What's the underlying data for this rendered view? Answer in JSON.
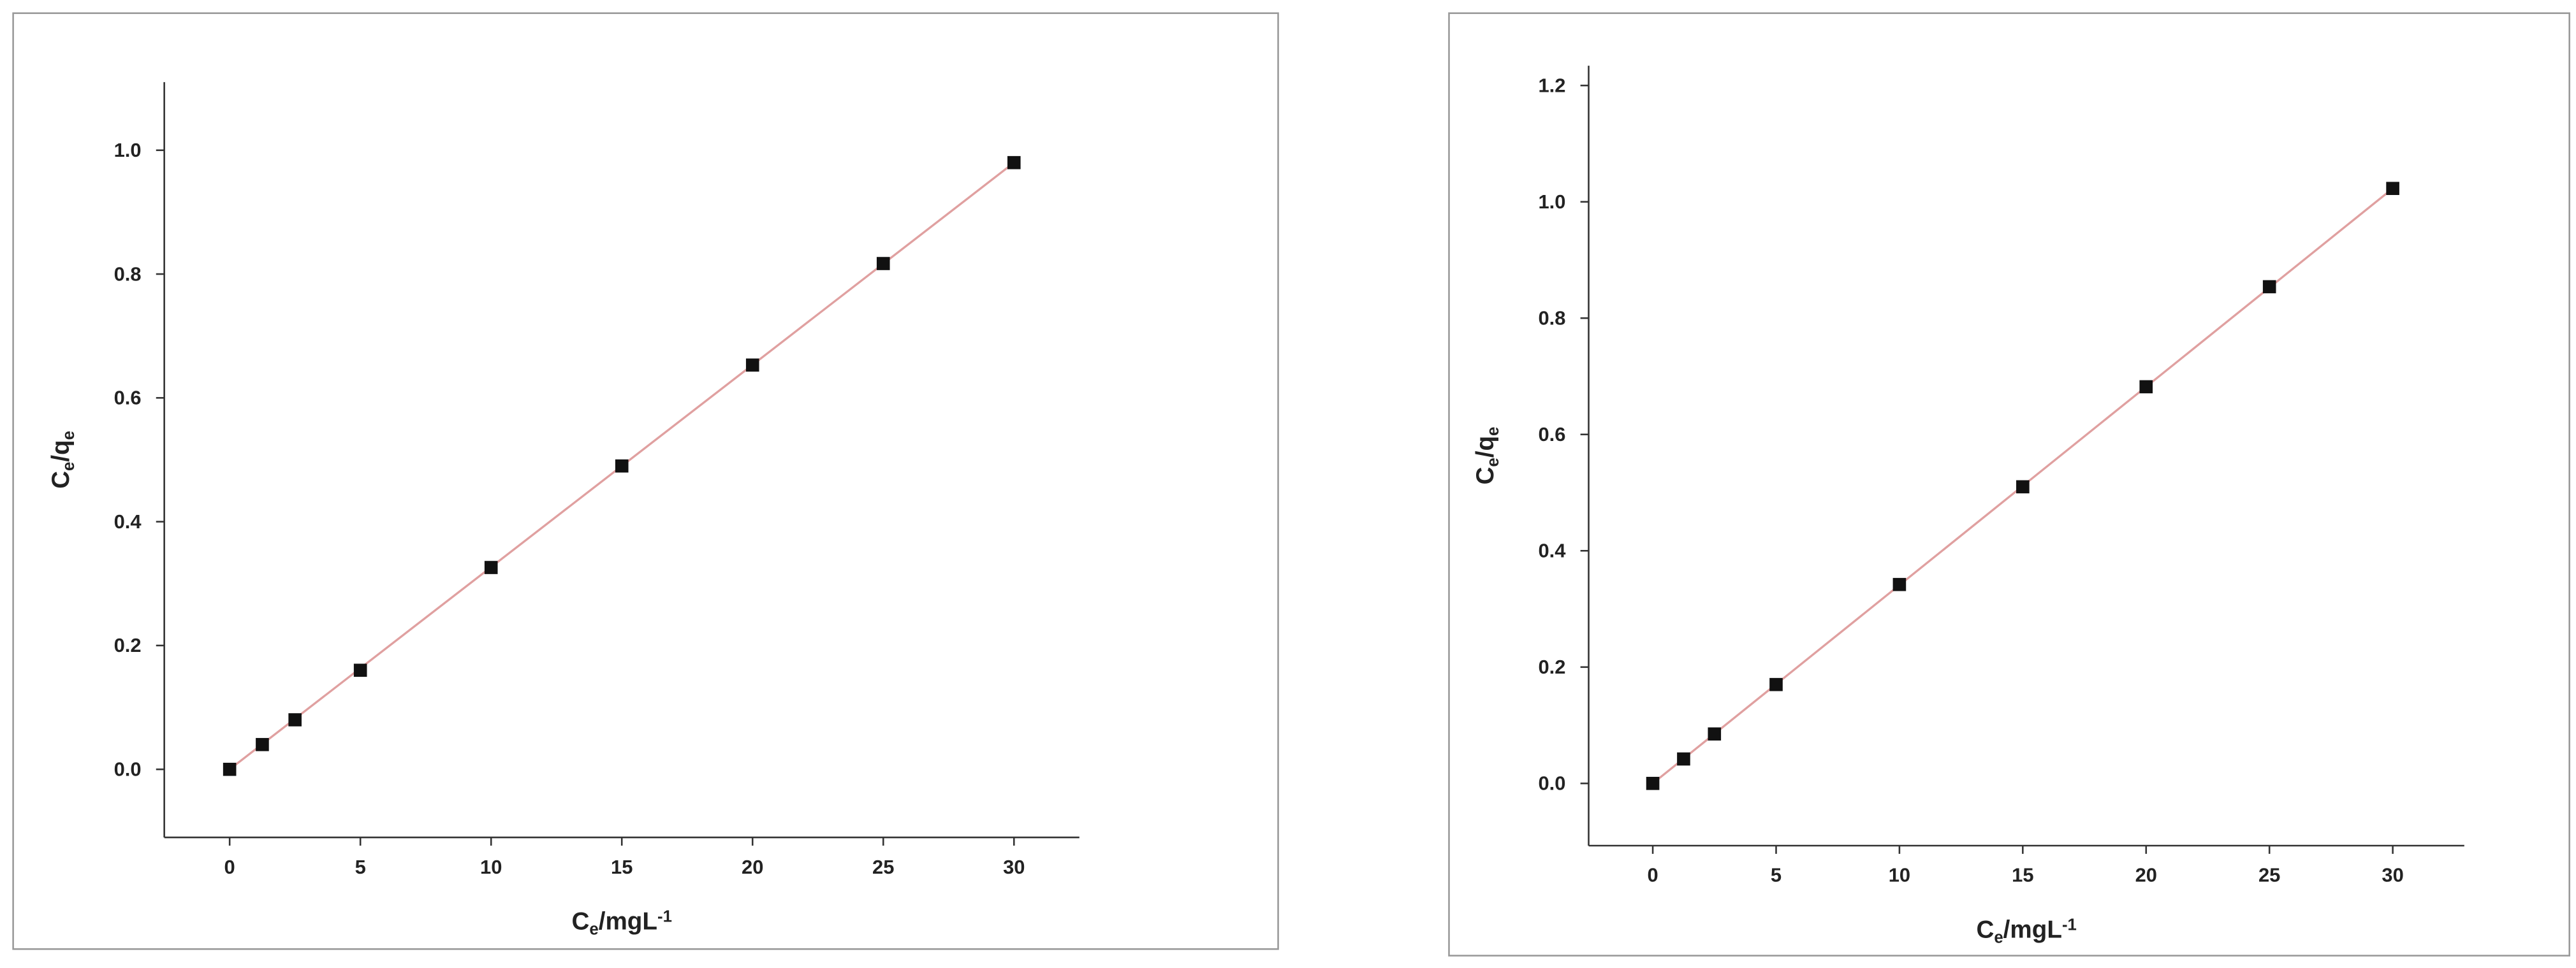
{
  "chart_data": [
    {
      "type": "scatter",
      "x": [
        0,
        1.25,
        2.5,
        5,
        10,
        15,
        20,
        25,
        30
      ],
      "series": [
        {
          "color": "#111111",
          "values": [
            0,
            0.04,
            0.08,
            0.16,
            0.326,
            0.49,
            0.653,
            0.817,
            0.98
          ]
        }
      ],
      "fit_line": {
        "color": "#e0a0a0",
        "x": [
          0,
          30
        ],
        "values": [
          0,
          0.98
        ]
      },
      "xlim": [
        -2.5,
        32.5
      ],
      "ylim": [
        -0.11,
        1.11
      ],
      "xticks": [
        0,
        5,
        10,
        15,
        20,
        25,
        30
      ],
      "yticks": [
        {
          "value": 0,
          "label": "0.0"
        },
        {
          "value": 0.2,
          "label": "0.2"
        },
        {
          "value": 0.4,
          "label": "0.4"
        },
        {
          "value": 0.6,
          "label": "0.6"
        },
        {
          "value": 0.8,
          "label": "0.8"
        },
        {
          "value": 1.0,
          "label": "1.0"
        }
      ],
      "xlabel": [
        "C",
        "e",
        "/mgL",
        "-1"
      ],
      "xlabel_styles": [
        "normal",
        "sub",
        "normal",
        "sup"
      ],
      "ylabel": [
        "C",
        "e",
        "/q",
        "e"
      ],
      "ylabel_styles": [
        "normal",
        "sub",
        "normal",
        "sub"
      ]
    },
    {
      "type": "scatter",
      "x": [
        0,
        1.25,
        2.5,
        5,
        10,
        15,
        20,
        25,
        30
      ],
      "series": [
        {
          "color": "#111111",
          "values": [
            0,
            0.042,
            0.085,
            0.17,
            0.342,
            0.51,
            0.682,
            0.854,
            1.023
          ]
        }
      ],
      "fit_line": {
        "color": "#e0a0a0",
        "x": [
          0,
          30
        ],
        "values": [
          0,
          1.023
        ]
      },
      "xlim": [
        -2.6,
        32.9
      ],
      "ylim": [
        -0.107,
        1.234
      ],
      "xticks": [
        0,
        5,
        10,
        15,
        20,
        25,
        30
      ],
      "yticks": [
        {
          "value": 0,
          "label": "0.0"
        },
        {
          "value": 0.2,
          "label": "0.2"
        },
        {
          "value": 0.4,
          "label": "0.4"
        },
        {
          "value": 0.6,
          "label": "0.6"
        },
        {
          "value": 0.8,
          "label": "0.8"
        },
        {
          "value": 1.0,
          "label": "1.0"
        },
        {
          "value": 1.2,
          "label": "1.2"
        }
      ],
      "xlabel": [
        "C",
        "e",
        "/mgL",
        "-1"
      ],
      "xlabel_styles": [
        "normal",
        "sub",
        "normal",
        "sup"
      ],
      "ylabel": [
        "C",
        "e",
        "/q",
        "e"
      ],
      "ylabel_styles": [
        "normal",
        "sub",
        "normal",
        "sub"
      ]
    }
  ]
}
